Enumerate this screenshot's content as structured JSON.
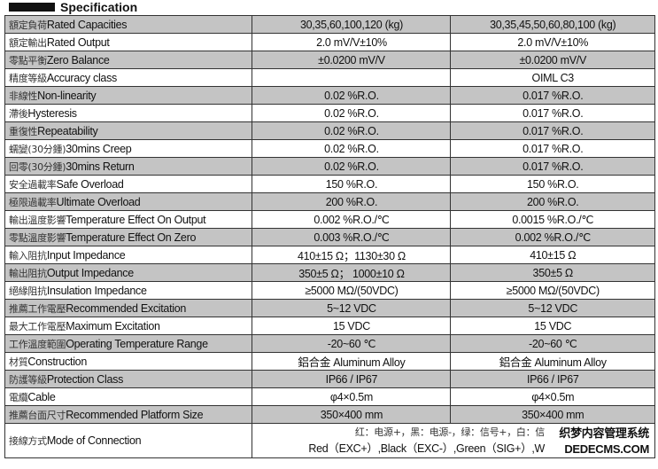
{
  "heading": "Specification",
  "rows": [
    {
      "label_cn": "額定負荷",
      "label_en": "Rated Capacities",
      "a": "30,35,60,100,120 (kg)",
      "b": "30,35,45,50,60,80,100 (kg)"
    },
    {
      "label_cn": "額定輸出",
      "label_en": "Rated Output",
      "a": "2.0 mV/V±10%",
      "b": "2.0 mV/V±10%"
    },
    {
      "label_cn": "零點平衡",
      "label_en": "Zero Balance",
      "a": "±0.0200 mV/V",
      "b": "±0.0200 mV/V"
    },
    {
      "label_cn": "精度等級",
      "label_en": "Accuracy class",
      "a": "",
      "b": "OIML C3"
    },
    {
      "label_cn": "非線性",
      "label_en": "Non-linearity",
      "a": "0.02 %R.O.",
      "b": "0.017 %R.O."
    },
    {
      "label_cn": "滯後",
      "label_en": "Hysteresis",
      "a": "0.02 %R.O.",
      "b": "0.017 %R.O."
    },
    {
      "label_cn": "重復性",
      "label_en": "Repeatability",
      "a": "0.02 %R.O.",
      "b": "0.017 %R.O."
    },
    {
      "label_cn": "蠕變(30分鍾)",
      "label_en": "30mins Creep",
      "a": "0.02 %R.O.",
      "b": "0.017 %R.O."
    },
    {
      "label_cn": "回零(30分鍾)",
      "label_en": "30mins Return",
      "a": "0.02 %R.O.",
      "b": "0.017 %R.O."
    },
    {
      "label_cn": "安全過載率",
      "label_en": "Safe Overload",
      "a": "150 %R.O.",
      "b": "150 %R.O."
    },
    {
      "label_cn": "極限過載率",
      "label_en": "Ultimate Overload",
      "a": "200 %R.O.",
      "b": "200 %R.O."
    },
    {
      "label_cn": "輸出溫度影響",
      "label_en": "Temperature Effect On Output",
      "a": "0.002 %R.O./℃",
      "b": "0.0015 %R.O./℃"
    },
    {
      "label_cn": "零點溫度影響",
      "label_en": "Temperature Effect On Zero",
      "a": "0.003 %R.O./℃",
      "b": "0.002 %R.O./℃"
    },
    {
      "label_cn": "輸入阻抗",
      "label_en": "Input Impedance",
      "a": "410±15 Ω；1130±30 Ω",
      "b": "410±15 Ω"
    },
    {
      "label_cn": "輸出阻抗",
      "label_en": "Output Impedance",
      "a": "350±5 Ω； 1000±10 Ω",
      "b": "350±5 Ω"
    },
    {
      "label_cn": "絕緣阻抗",
      "label_en": "Insulation Impedance",
      "a": "≥5000 MΩ/(50VDC)",
      "b": "≥5000 MΩ/(50VDC)"
    },
    {
      "label_cn": "推薦工作電壓",
      "label_en": "Recommended Excitation",
      "a": "5~12 VDC",
      "b": "5~12 VDC"
    },
    {
      "label_cn": "最大工作電壓",
      "label_en": "Maximum Excitation",
      "a": "15 VDC",
      "b": "15 VDC"
    },
    {
      "label_cn": "工作溫度範圍",
      "label_en": "Operating Temperature Range",
      "a": "-20~60 ℃",
      "b": "-20~60 ℃"
    },
    {
      "label_cn": "材質",
      "label_en": "Construction",
      "a": "鋁合金 Aluminum Alloy",
      "b": "鋁合金 Aluminum Alloy"
    },
    {
      "label_cn": "防護等級",
      "label_en": "Protection Class",
      "a": "IP66 / IP67",
      "b": "IP66 / IP67"
    },
    {
      "label_cn": "電纜",
      "label_en": "Cable",
      "a": "φ4×0.5m",
      "b": "φ4×0.5m"
    },
    {
      "label_cn": "推薦台面尺寸",
      "label_en": "Recommended Platform Size",
      "a": "350×400 mm",
      "b": "350×400 mm"
    }
  ],
  "connection": {
    "label_cn": "接線方式",
    "label_en": "Mode of Connection",
    "line_cn": "红：电源+，黑：电源-，绿：信号+，白：信",
    "line_en": "Red（EXC+）,Black（EXC-）,Green（SIG+）,W"
  },
  "watermark": {
    "line1": "织梦内容管理系统",
    "line2": "DEDECMS.COM"
  },
  "colors": {
    "row_shade": "#c4c4c4",
    "border": "#333333"
  }
}
